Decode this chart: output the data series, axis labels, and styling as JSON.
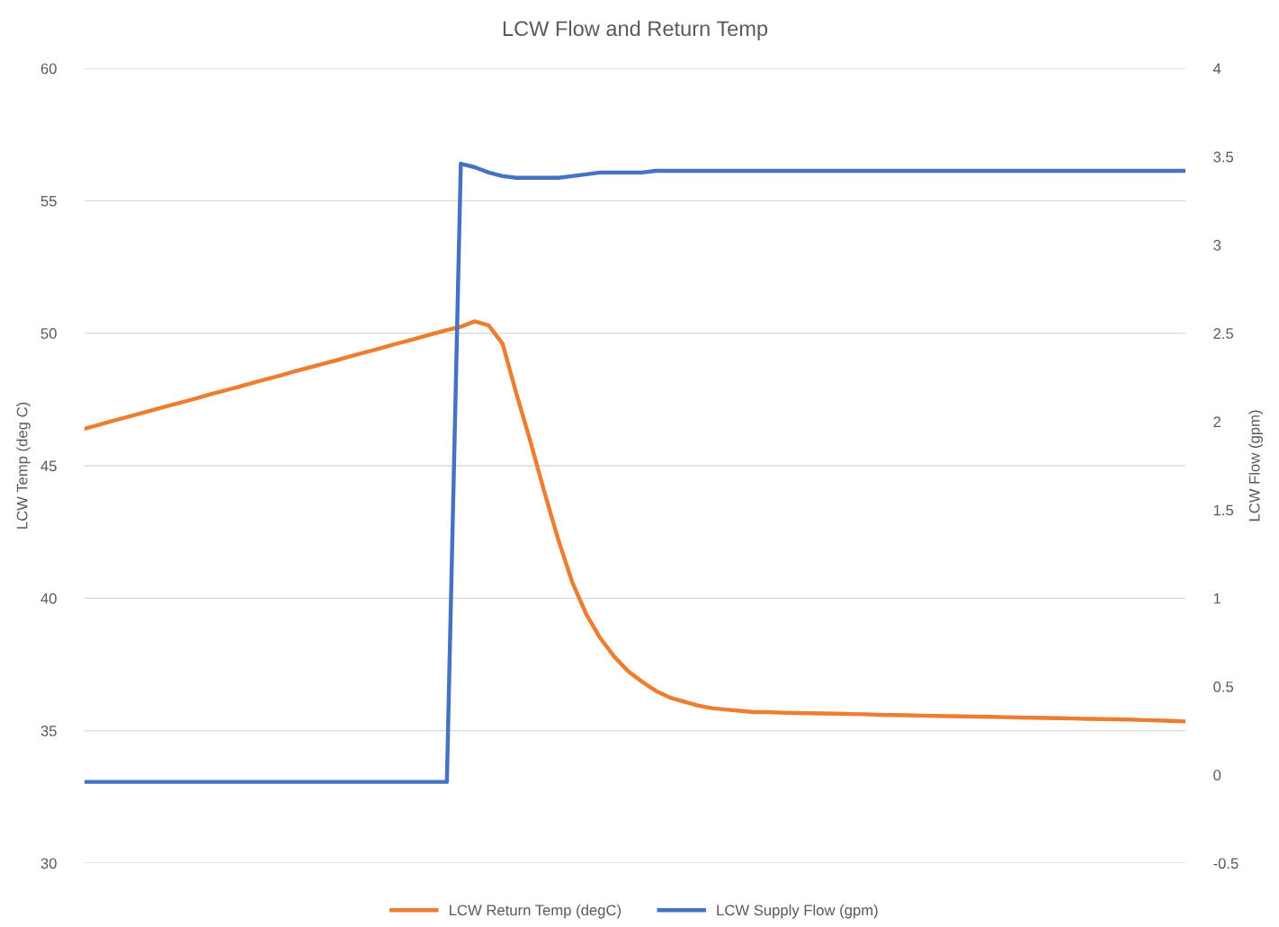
{
  "chart_data": {
    "type": "line",
    "title": "LCW Flow and Return Temp",
    "ylabel": "LCW Temp (deg C)",
    "y2label": "LCW Flow (gpm)",
    "categories": [
      null,
      null,
      null,
      null,
      null,
      null,
      null,
      null,
      null,
      null,
      null,
      null,
      null,
      null,
      null,
      null,
      null,
      null,
      null,
      null,
      null,
      null,
      null,
      null,
      null,
      null,
      null,
      null,
      null,
      null,
      null,
      null,
      null,
      null,
      null,
      null,
      null,
      null,
      null,
      null,
      null,
      null,
      null,
      null,
      null,
      null,
      null,
      null,
      null,
      null,
      null,
      null,
      null,
      null,
      null,
      null,
      null,
      null,
      null,
      null,
      null,
      null,
      null,
      null,
      null,
      null,
      null,
      null,
      null,
      null,
      null,
      null,
      null,
      null,
      null,
      null,
      null,
      null,
      null,
      null
    ],
    "ylim": [
      30,
      60
    ],
    "yticks": [
      30,
      35,
      40,
      45,
      50,
      55,
      60
    ],
    "y2lim": [
      -0.5,
      4
    ],
    "y2ticks": [
      -0.5,
      0,
      0.5,
      1,
      1.5,
      2,
      2.5,
      3,
      3.5,
      4
    ],
    "grid": "y",
    "legend": "bottom",
    "tick_labels": "y",
    "series": [
      {
        "name": "LCW Return Temp (degC)",
        "color": "#ed7d31",
        "values": [
          46.4,
          46.54,
          46.69,
          46.83,
          46.97,
          47.12,
          47.26,
          47.4,
          47.54,
          47.69,
          47.83,
          47.97,
          48.12,
          48.26,
          48.4,
          48.55,
          48.69,
          48.83,
          48.97,
          49.12,
          49.26,
          49.4,
          49.55,
          49.69,
          49.83,
          49.98,
          50.12,
          50.25,
          50.45,
          50.3,
          49.6,
          47.7,
          45.9,
          44.0,
          42.2,
          40.6,
          39.4,
          38.5,
          37.8,
          37.25,
          36.85,
          36.5,
          36.25,
          36.1,
          35.95,
          35.85,
          35.8,
          35.75,
          35.7,
          35.7,
          35.68,
          35.67,
          35.66,
          35.65,
          35.64,
          35.63,
          35.62,
          35.6,
          35.59,
          35.58,
          35.57,
          35.56,
          35.55,
          35.54,
          35.53,
          35.52,
          35.51,
          35.5,
          35.49,
          35.48,
          35.47,
          35.46,
          35.45,
          35.44,
          35.43,
          35.42,
          35.4,
          35.39,
          35.37,
          35.35
        ]
      },
      {
        "name": "LCW Supply Flow (gpm)",
        "color": "#4472c4",
        "axis": "y2",
        "values": [
          -0.04,
          -0.04,
          -0.04,
          -0.04,
          -0.04,
          -0.04,
          -0.04,
          -0.04,
          -0.04,
          -0.04,
          -0.04,
          -0.04,
          -0.04,
          -0.04,
          -0.04,
          -0.04,
          -0.04,
          -0.04,
          -0.04,
          -0.04,
          -0.04,
          -0.04,
          -0.04,
          -0.04,
          -0.04,
          -0.04,
          -0.04,
          3.46,
          3.44,
          3.41,
          3.39,
          3.38,
          3.38,
          3.38,
          3.38,
          3.39,
          3.4,
          3.41,
          3.41,
          3.41,
          3.41,
          3.42,
          3.42,
          3.42,
          3.42,
          3.42,
          3.42,
          3.42,
          3.42,
          3.42,
          3.42,
          3.42,
          3.42,
          3.42,
          3.42,
          3.42,
          3.42,
          3.42,
          3.42,
          3.42,
          3.42,
          3.42,
          3.42,
          3.42,
          3.42,
          3.42,
          3.42,
          3.42,
          3.42,
          3.42,
          3.42,
          3.42,
          3.42,
          3.42,
          3.42,
          3.42,
          3.42,
          3.42,
          3.42,
          3.42
        ]
      }
    ]
  }
}
